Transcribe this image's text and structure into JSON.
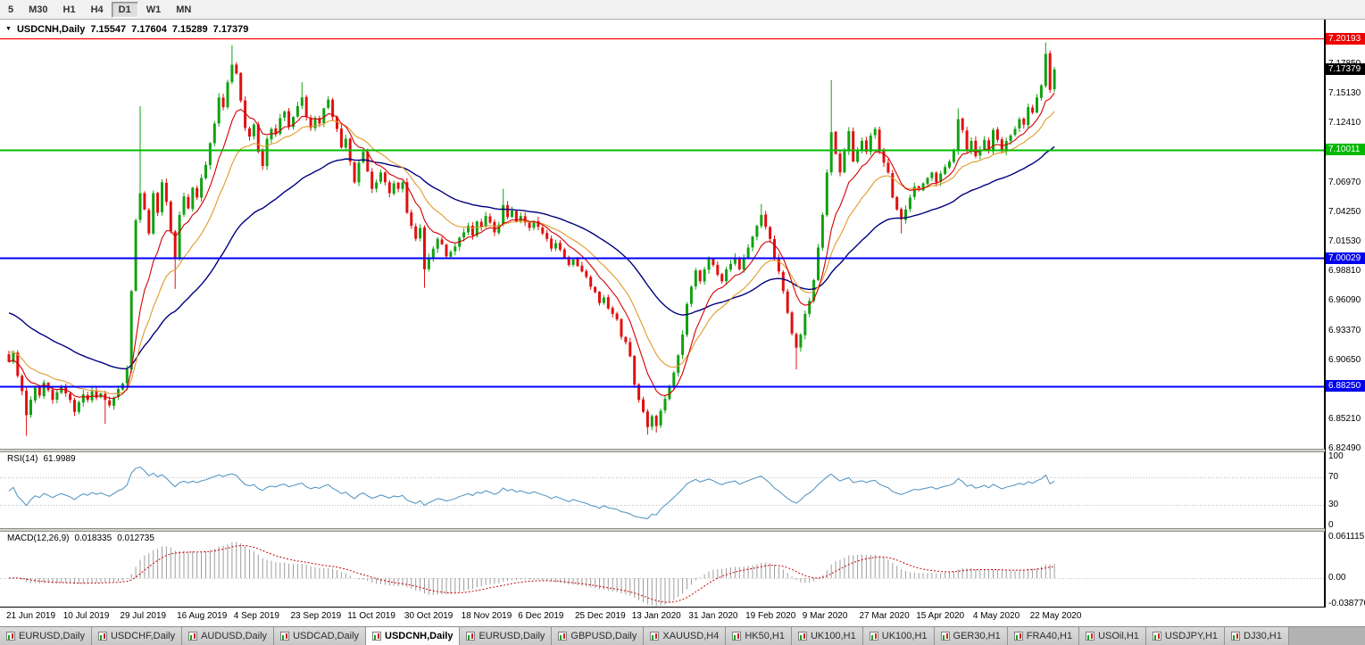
{
  "toolbar": {
    "timeframes": [
      "5",
      "M30",
      "H1",
      "H4",
      "D1",
      "W1",
      "MN"
    ],
    "active_timeframe": "D1"
  },
  "chart": {
    "title": {
      "symbol_period": "USDCNH,Daily",
      "open": "7.15547",
      "high": "7.17604",
      "low": "7.15289",
      "close": "7.17379",
      "menu_arrow": "▼"
    },
    "price_axis": {
      "labels": [
        "7.17850",
        "7.15130",
        "7.12410",
        "7.09690",
        "7.06970",
        "7.04250",
        "7.01530",
        "6.98810",
        "6.96090",
        "6.93370",
        "6.90650",
        "6.87930",
        "6.85210",
        "6.82490"
      ],
      "badges": [
        {
          "value": "7.20193",
          "price": 7.20193,
          "color": "#EE0000"
        },
        {
          "value": "7.17379",
          "price": 7.17379,
          "color": "#000000"
        },
        {
          "value": "7.10011",
          "price": 7.10011,
          "color": "#00B800"
        },
        {
          "value": "7.00029",
          "price": 7.00029,
          "color": "#0000EE"
        },
        {
          "value": "6.88250",
          "price": 6.8825,
          "color": "#0000EE"
        }
      ]
    },
    "hlines": [
      {
        "price": 7.20193,
        "color": "#FF0000",
        "width": 1.3
      },
      {
        "price": 7.10011,
        "color": "#00BE00",
        "width": 2
      },
      {
        "price": 7.00029,
        "color": "#0000FF",
        "width": 2
      },
      {
        "price": 6.8825,
        "color": "#0000FF",
        "width": 2
      }
    ],
    "dates": [
      "21 Jun 2019",
      "10 Jul 2019",
      "29 Jul 2019",
      "16 Aug 2019",
      "4 Sep 2019",
      "23 Sep 2019",
      "11 Oct 2019",
      "30 Oct 2019",
      "18 Nov 2019",
      "6 Dec 2019",
      "25 Dec 2019",
      "13 Jan 2020",
      "31 Jan 2020",
      "19 Feb 2020",
      "9 Mar 2020",
      "27 Mar 2020",
      "15 Apr 2020",
      "4 May 2020",
      "22 May 2020"
    ]
  },
  "rsi": {
    "label": "RSI(14)",
    "value": "61.9989",
    "levels": [
      "100",
      "70",
      "30",
      "0"
    ]
  },
  "macd": {
    "label": "MACD(12,26,9)",
    "value_main": "0.018335",
    "value_signal": "0.012735",
    "axis": [
      "0.061115",
      "0.00",
      "-0.038770"
    ]
  },
  "tabs": [
    {
      "label": "EURUSD,Daily",
      "active": false
    },
    {
      "label": "USDCHF,Daily",
      "active": false
    },
    {
      "label": "AUDUSD,Daily",
      "active": false
    },
    {
      "label": "USDCAD,Daily",
      "active": false
    },
    {
      "label": "USDCNH,Daily",
      "active": true
    },
    {
      "label": "EURUSD,Daily",
      "active": false
    },
    {
      "label": "GBPUSD,Daily",
      "active": false
    },
    {
      "label": "XAUUSD,H4",
      "active": false
    },
    {
      "label": "HK50,H1",
      "active": false
    },
    {
      "label": "UK100,H1",
      "active": false
    },
    {
      "label": "UK100,H1",
      "active": false
    },
    {
      "label": "GER30,H1",
      "active": false
    },
    {
      "label": "FRA40,H1",
      "active": false
    },
    {
      "label": "USOil,H1",
      "active": false
    },
    {
      "label": "USDJPY,H1",
      "active": false
    },
    {
      "label": "DJ30,H1",
      "active": false
    }
  ],
  "chart_data": {
    "type": "candlestick",
    "symbol": "USDCNH",
    "timeframe": "Daily",
    "last_ohlc": {
      "open": 7.15547,
      "high": 7.17604,
      "low": 7.15289,
      "close": 7.17379
    },
    "price_range": [
      6.8251,
      7.2195
    ],
    "candles_per_date_label": 13,
    "candle_up_color": "#12A112",
    "candle_down_color": "#E01010",
    "horizontal_levels": [
      7.20193,
      7.10011,
      7.00029,
      6.8825
    ],
    "closes": [
      6.905,
      6.913,
      6.892,
      6.878,
      6.856,
      6.87,
      6.881,
      6.874,
      6.886,
      6.879,
      6.87,
      6.877,
      6.882,
      6.876,
      6.87,
      6.859,
      6.868,
      6.875,
      6.87,
      6.878,
      6.872,
      6.876,
      6.87,
      6.865,
      6.872,
      6.88,
      6.885,
      6.898,
      6.97,
      7.035,
      7.06,
      7.045,
      7.023,
      7.06,
      7.042,
      7.07,
      7.052,
      7.025,
      7.0,
      7.04,
      7.057,
      7.046,
      7.065,
      7.056,
      7.074,
      7.086,
      7.106,
      7.124,
      7.148,
      7.139,
      7.162,
      7.178,
      7.17,
      7.145,
      7.12,
      7.112,
      7.123,
      7.098,
      7.085,
      7.11,
      7.119,
      7.114,
      7.129,
      7.135,
      7.121,
      7.13,
      7.14,
      7.148,
      7.13,
      7.12,
      7.129,
      7.124,
      7.138,
      7.146,
      7.13,
      7.119,
      7.102,
      7.11,
      7.089,
      7.07,
      7.088,
      7.098,
      7.08,
      7.064,
      7.07,
      7.079,
      7.07,
      7.06,
      7.069,
      7.064,
      7.07,
      7.042,
      7.03,
      7.018,
      7.028,
      6.99,
      7.001,
      7.009,
      7.018,
      7.013,
      7.002,
      7.006,
      7.011,
      7.019,
      7.024,
      7.03,
      7.021,
      7.034,
      7.029,
      7.039,
      7.033,
      7.024,
      7.031,
      7.049,
      7.038,
      7.044,
      7.034,
      7.039,
      7.033,
      7.028,
      7.034,
      7.029,
      7.023,
      7.018,
      7.009,
      7.014,
      7.008,
      7.001,
      6.994,
      6.999,
      6.993,
      6.988,
      6.983,
      6.974,
      6.969,
      6.959,
      6.964,
      6.954,
      6.949,
      6.944,
      6.928,
      6.923,
      6.91,
      6.884,
      6.87,
      6.859,
      6.845,
      6.855,
      6.846,
      6.86,
      6.871,
      6.882,
      6.895,
      6.911,
      6.93,
      6.958,
      6.974,
      6.989,
      6.979,
      6.99,
      7.0,
      6.994,
      6.985,
      6.979,
      6.99,
      6.995,
      7.001,
      6.99,
      7.0,
      7.01,
      7.02,
      7.03,
      7.04,
      7.029,
      7.018,
      7.0,
      6.988,
      6.97,
      6.95,
      6.931,
      6.918,
      6.93,
      6.949,
      6.961,
      6.98,
      7.01,
      7.04,
      7.079,
      7.116,
      7.096,
      7.079,
      7.099,
      7.117,
      7.089,
      7.099,
      7.108,
      7.098,
      7.113,
      7.119,
      7.099,
      7.088,
      7.079,
      7.056,
      7.045,
      7.036,
      7.045,
      7.056,
      7.066,
      7.063,
      7.069,
      7.074,
      7.079,
      7.07,
      7.078,
      7.084,
      7.089,
      7.099,
      7.128,
      7.118,
      7.099,
      7.108,
      7.094,
      7.1,
      7.109,
      7.099,
      7.118,
      7.109,
      7.099,
      7.108,
      7.113,
      7.119,
      7.128,
      7.123,
      7.139,
      7.134,
      7.148,
      7.159,
      7.188,
      7.155,
      7.17379
    ],
    "spikes": [
      {
        "i": 4,
        "low": 6.837
      },
      {
        "i": 22,
        "low": 6.848
      },
      {
        "i": 30,
        "high": 7.14
      },
      {
        "i": 38,
        "low": 6.972
      },
      {
        "i": 51,
        "high": 7.196
      },
      {
        "i": 67,
        "high": 7.162
      },
      {
        "i": 95,
        "low": 6.973
      },
      {
        "i": 113,
        "high": 7.064
      },
      {
        "i": 146,
        "low": 6.838
      },
      {
        "i": 148,
        "low": 6.84
      },
      {
        "i": 172,
        "high": 7.05
      },
      {
        "i": 180,
        "low": 6.898
      },
      {
        "i": 188,
        "high": 7.164
      },
      {
        "i": 204,
        "low": 7.023
      },
      {
        "i": 217,
        "high": 7.138
      },
      {
        "i": 237,
        "high": 7.1985
      },
      {
        "i": 239,
        "open": 7.15547,
        "high": 7.17604,
        "low": 7.15289
      }
    ],
    "indicators": {
      "moving_averages": [
        {
          "period": 9,
          "color": "#D40000"
        },
        {
          "period": 18,
          "color": "#E09A28"
        },
        {
          "period": 45,
          "color": "#00007E"
        }
      ],
      "rsi": {
        "label": "RSI(14)",
        "value": 61.9989,
        "levels": [
          100,
          70,
          30,
          0
        ],
        "color": "#4A8FBF"
      },
      "macd": {
        "label": "MACD(12,26,9)",
        "main": 0.018335,
        "signal": 0.012735,
        "hist_color": "#9C9C9C",
        "signal_color": "#C80000"
      }
    }
  }
}
